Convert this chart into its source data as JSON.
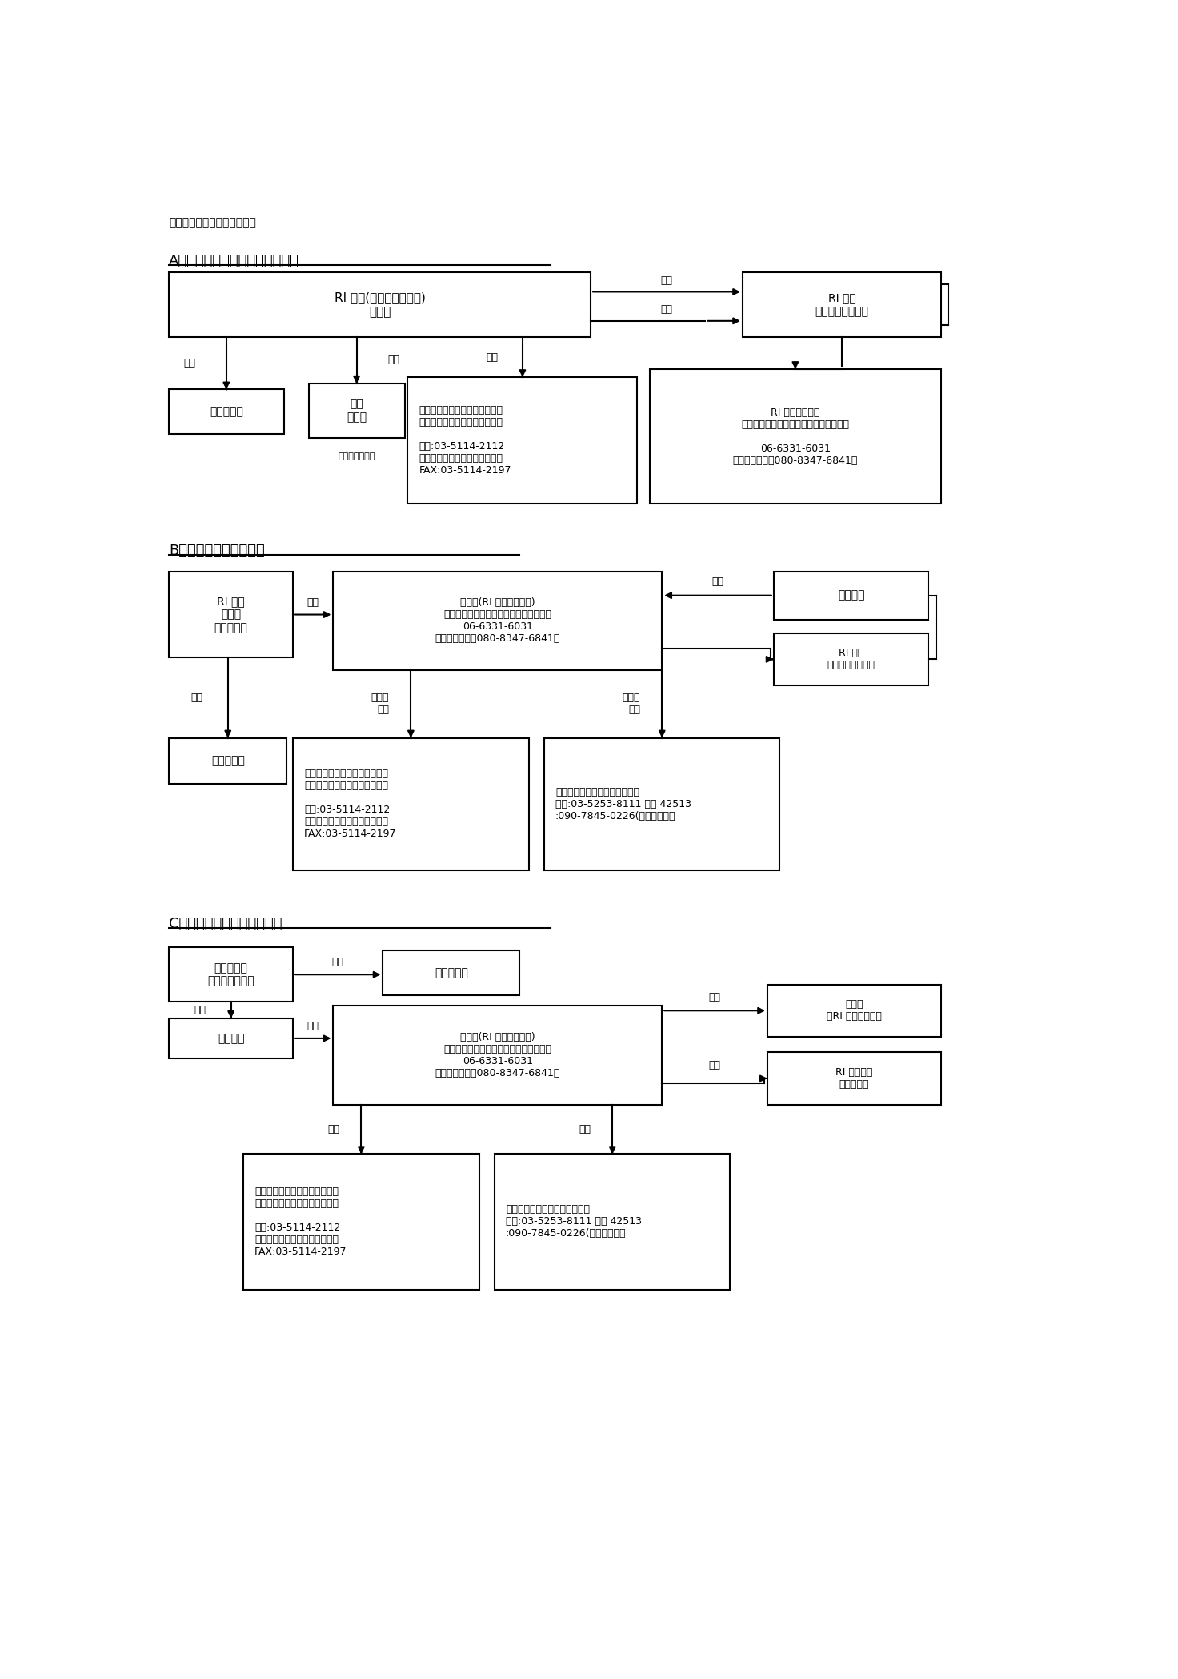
{
  "title": "事故発生等の緊急時連絡体制",
  "bg_color": "#ffffff",
  "section_A_title": "A．災害、盗難、紛失事故発生時",
  "section_B_title": "B．輸送中の所在不明時",
  "section_C_title": "C．輸送中の車両事故発生時",
  "font_name": "Noto Sans CJK JP",
  "fallback_fonts": [
    "IPAGothic",
    "IPAPGothic",
    "TakaoGothic",
    "VL Gothic",
    "Noto Sans JP",
    "MS Gothic",
    "Yu Gothic",
    "Hiragino Sans"
  ],
  "lw": 1.5
}
